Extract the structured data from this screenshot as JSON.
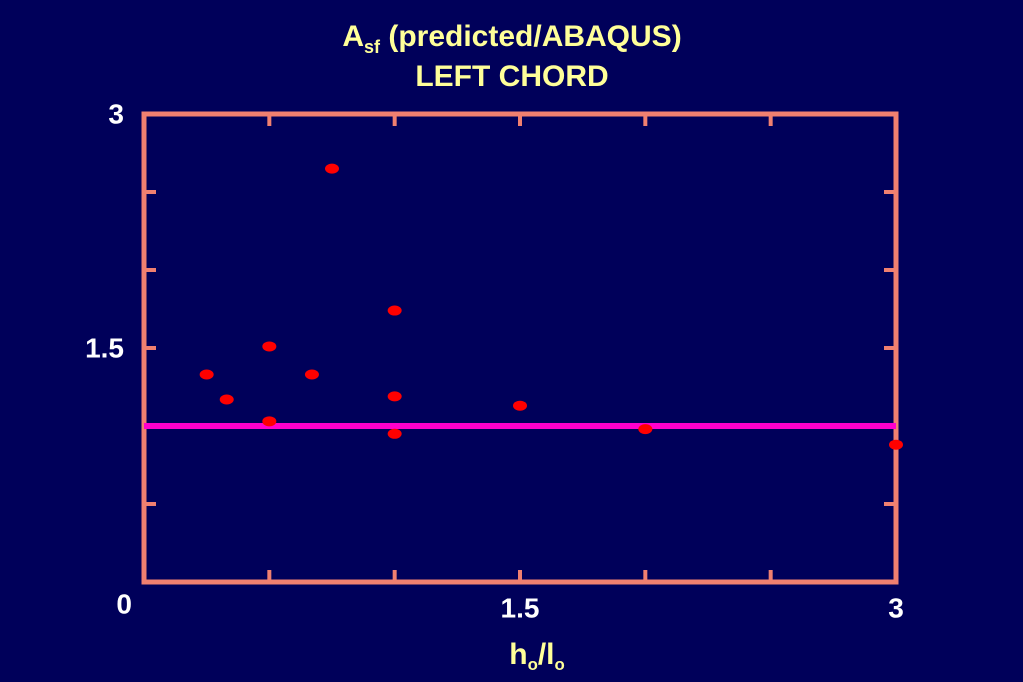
{
  "chart_data": {
    "type": "scatter",
    "title": [
      {
        "text": "A"
      },
      {
        "text": "sf",
        "sub": true
      },
      {
        "text": " (predicted/ABAQUS)"
      }
    ],
    "subtitle": "LEFT CHORD",
    "xlabel": [
      {
        "text": "h"
      },
      {
        "text": "o",
        "sub": true
      },
      {
        "text": "/l"
      },
      {
        "text": "o",
        "sub": true
      }
    ],
    "x": [
      0.25,
      0.33,
      0.5,
      0.5,
      0.67,
      0.75,
      1.0,
      1.0,
      1.0,
      1.5,
      2.0,
      3.0
    ],
    "series": [
      {
        "color": "#ff0000",
        "values": [
          1.33,
          1.17,
          1.51,
          1.03,
          1.33,
          2.65,
          1.74,
          1.19,
          0.95,
          1.13,
          0.98,
          0.88
        ]
      }
    ],
    "reference_line": {
      "y": 1,
      "color": "#ff00cc"
    },
    "xlim": [
      0,
      3
    ],
    "ylim": [
      0,
      3
    ],
    "xticks": [
      1.5,
      3
    ],
    "yticks": [
      0,
      1.5,
      3
    ],
    "xminorticks": [
      0.5,
      1,
      2,
      2.5
    ],
    "yminorticks": [
      0.5,
      1,
      2,
      2.5
    ],
    "frame_color": "#f08070"
  }
}
